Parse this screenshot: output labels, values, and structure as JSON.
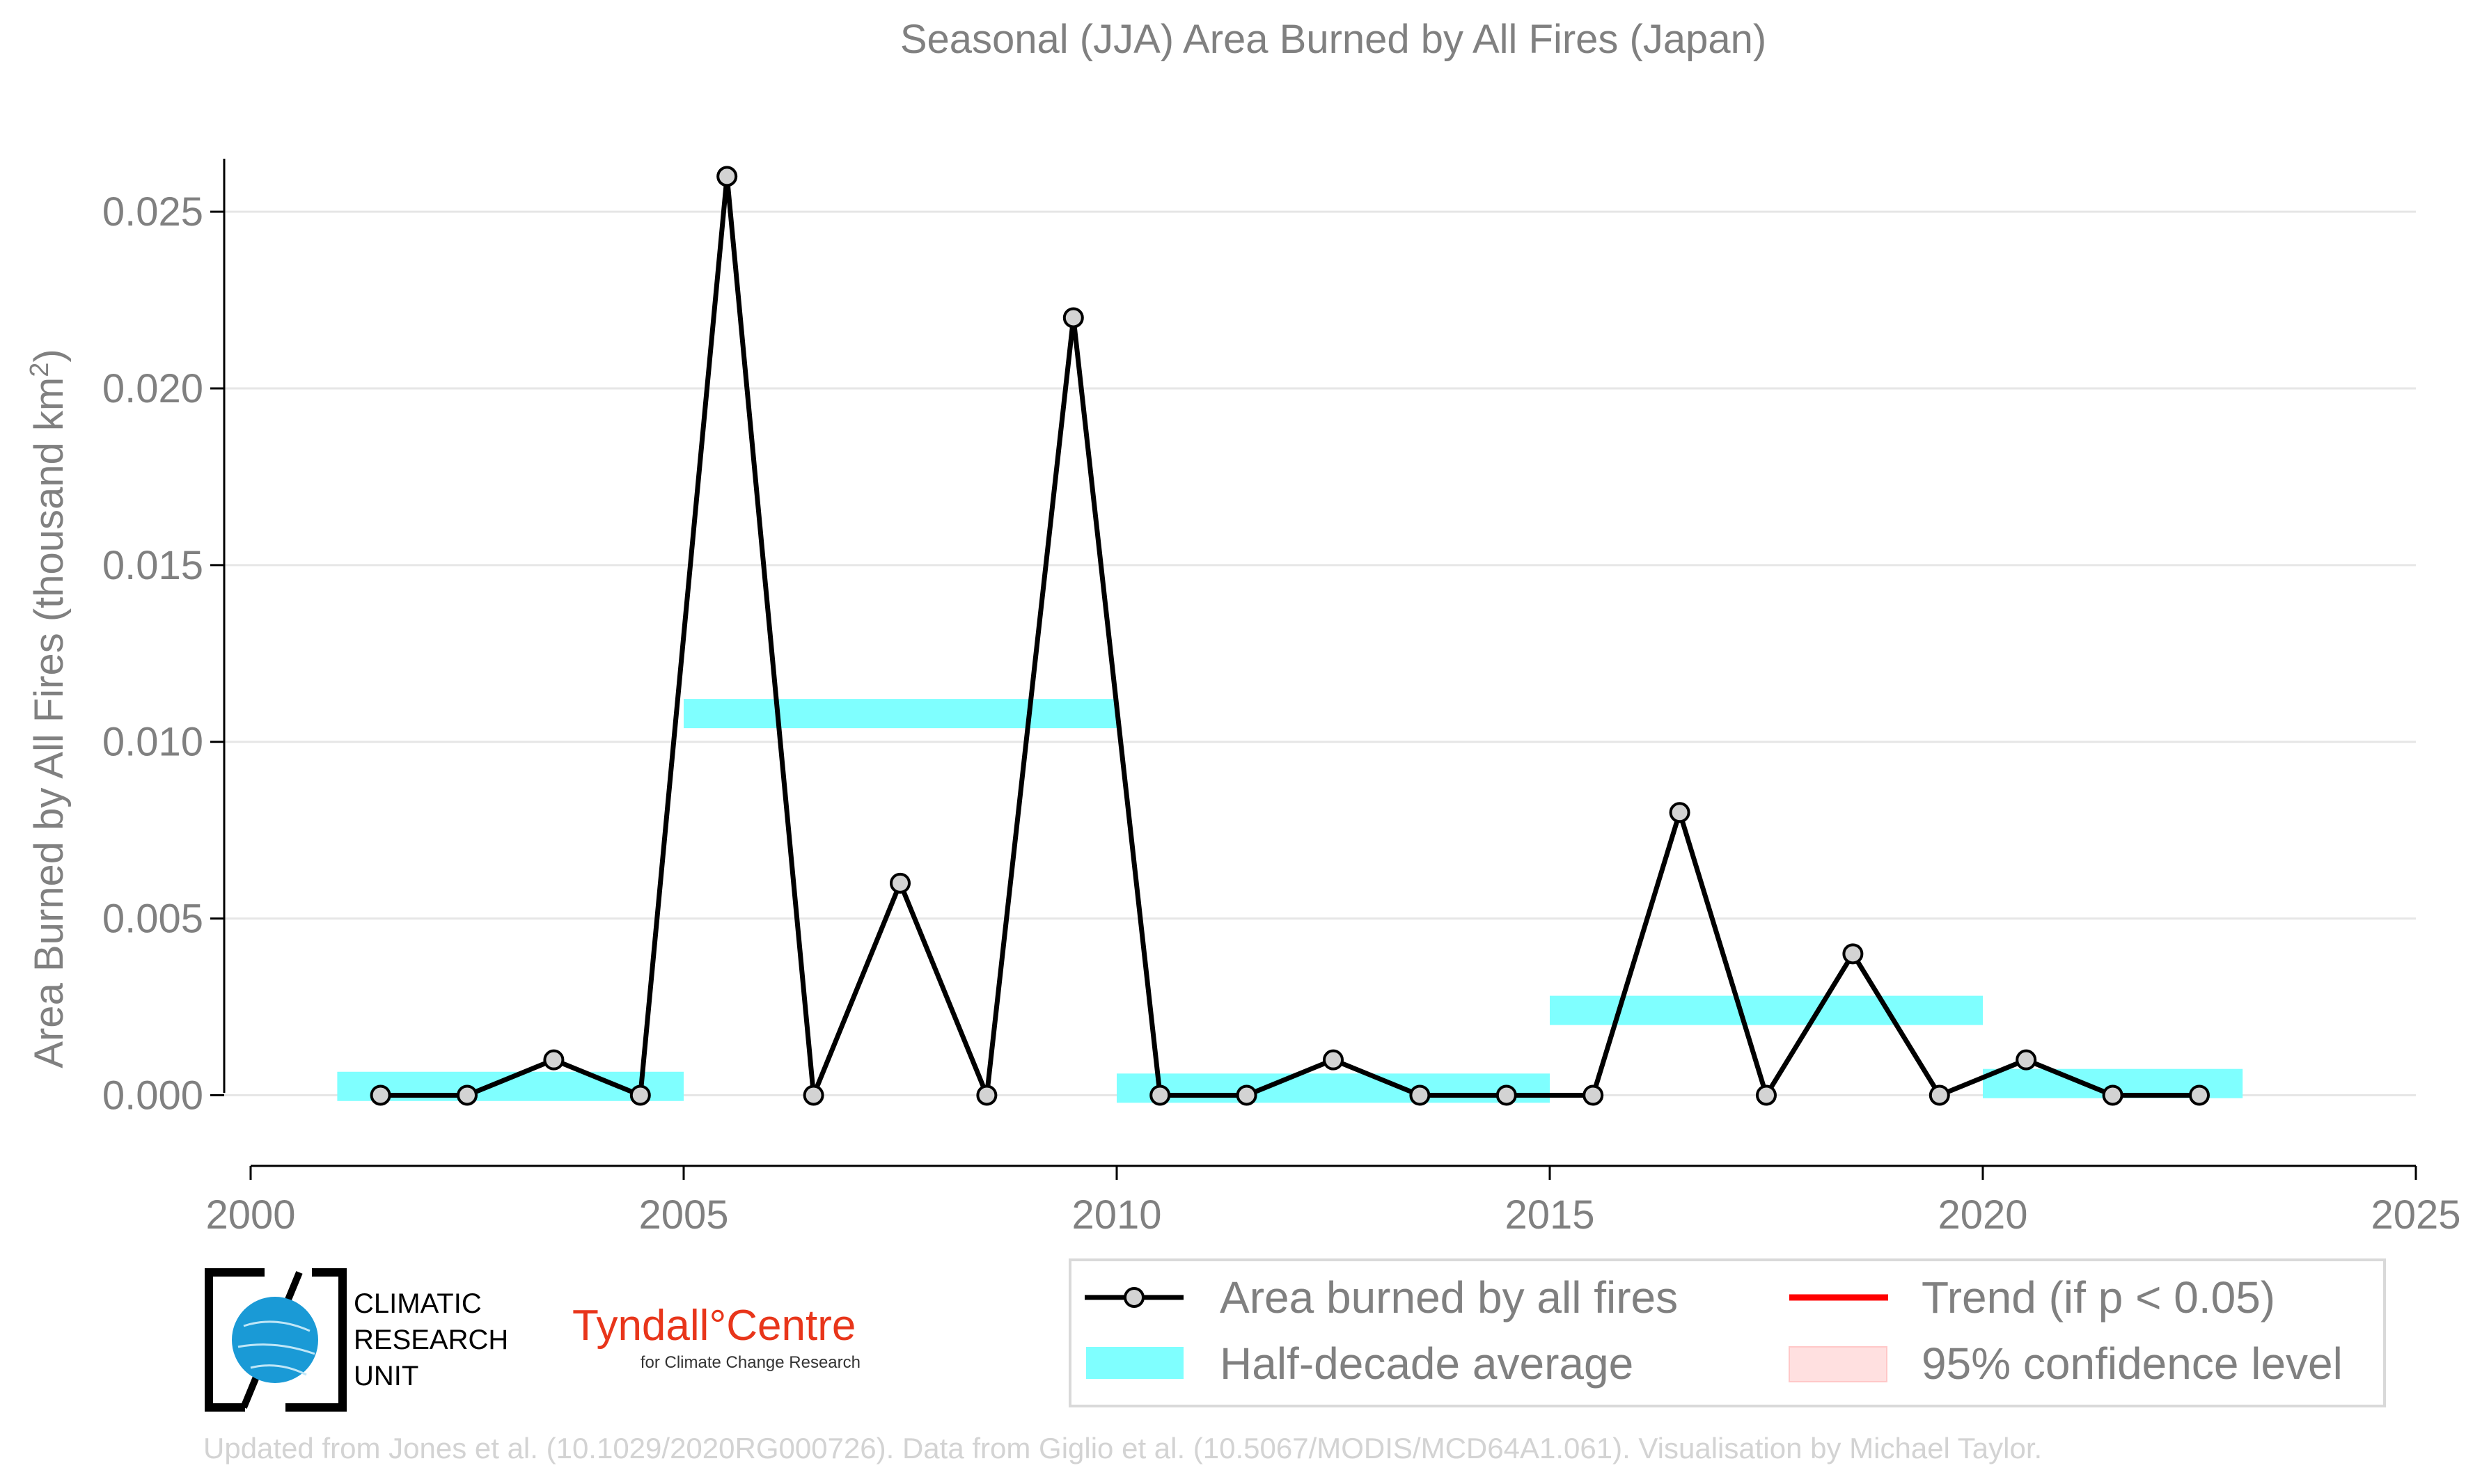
{
  "chart_data": {
    "type": "line",
    "title": "Seasonal (JJA) Area Burned by All Fires (Japan)",
    "ylabel_main": "Area Burned by All Fires (thousand km",
    "ylabel_sup": "2",
    "ylabel_end": ")",
    "xlim": [
      2000,
      2025
    ],
    "ylim": [
      -0.002,
      0.0265
    ],
    "x_ticks": [
      2000,
      2005,
      2010,
      2015,
      2020,
      2025
    ],
    "x_tick_labels": [
      "2000",
      "2005",
      "2010",
      "2015",
      "2020",
      "2025"
    ],
    "y_ticks": [
      0.0,
      0.005,
      0.01,
      0.015,
      0.02,
      0.025
    ],
    "y_tick_labels": [
      "0.000",
      "0.005",
      "0.010",
      "0.015",
      "0.020",
      "0.025"
    ],
    "grid": "horizontal",
    "legend_position": "bottom-right",
    "series": [
      {
        "name": "Area burned by all fires",
        "color": "#000000",
        "marker_fill": "#d3d3d3",
        "x": [
          2001.5,
          2002.5,
          2003.5,
          2004.5,
          2005.5,
          2006.5,
          2007.5,
          2008.5,
          2009.5,
          2010.5,
          2011.5,
          2012.5,
          2013.5,
          2014.5,
          2015.5,
          2016.5,
          2017.5,
          2018.5,
          2019.5,
          2020.5,
          2021.5,
          2022.5
        ],
        "y": [
          0.0,
          0.0,
          0.001,
          0.0,
          0.026,
          0.0,
          0.006,
          0.0,
          0.022,
          0.0,
          0.0,
          0.001,
          0.0,
          0.0,
          0.0,
          0.008,
          0.0,
          0.004,
          0.0,
          0.001,
          0.0,
          0.0
        ]
      }
    ],
    "half_decade_average": {
      "name": "Half-decade average",
      "color": "#7fffff",
      "segments": [
        {
          "x_start": 2001,
          "x_end": 2005,
          "value": 0.00025
        },
        {
          "x_start": 2005,
          "x_end": 2010,
          "value": 0.0108
        },
        {
          "x_start": 2010,
          "x_end": 2015,
          "value": 0.0002
        },
        {
          "x_start": 2015,
          "x_end": 2020,
          "value": 0.0024
        },
        {
          "x_start": 2020,
          "x_end": 2023,
          "value": 0.00033
        }
      ]
    },
    "legend": [
      {
        "label": "Area burned by all fires",
        "kind": "line-marker",
        "color": "#000000"
      },
      {
        "label": "Trend (if p < 0.05)",
        "kind": "line",
        "color": "#ff0000"
      },
      {
        "label": "Half-decade average",
        "kind": "band",
        "color": "#7fffff"
      },
      {
        "label": "95% confidence level",
        "kind": "patch",
        "color": "#ffe0e0"
      }
    ]
  },
  "logos": {
    "cru_lines": [
      "CLIMATIC",
      "RESEARCH",
      "UNIT"
    ],
    "tyndall_main": "Tyndall°Centre",
    "tyndall_sub": "for Climate Change Research"
  },
  "source_note": "Updated from Jones et al. (10.1029/2020RG000726). Data from Giglio et al. (10.5067/MODIS/MCD64A1.061). Visualisation by Michael Taylor."
}
